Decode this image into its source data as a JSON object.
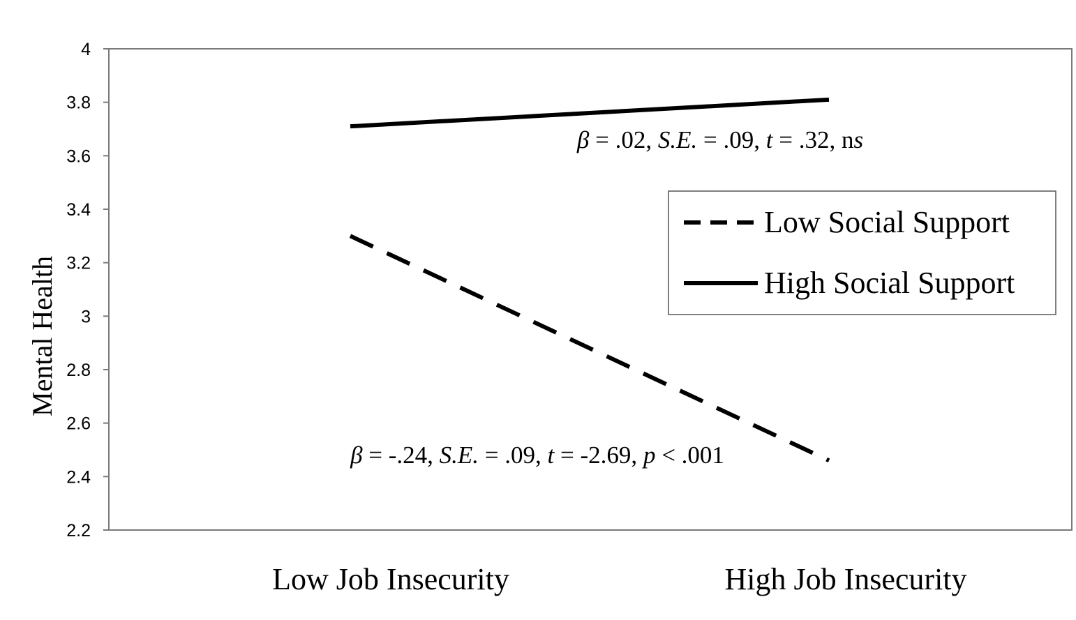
{
  "chart_data": {
    "type": "line",
    "categories": [
      "Low Job Insecurity",
      "High Job Insecurity"
    ],
    "series": [
      {
        "name": "Low Social Support",
        "values": [
          3.3,
          2.46
        ],
        "style": "dashed",
        "color": "#000000"
      },
      {
        "name": "High Social Support",
        "values": [
          3.71,
          3.81
        ],
        "style": "solid",
        "color": "#000000"
      }
    ],
    "ylabel": "Mental Health",
    "xlabel": "",
    "ylim": [
      2.2,
      4
    ],
    "yticks": [
      "2.2",
      "2.4",
      "2.6",
      "2.8",
      "3",
      "3.2",
      "3.4",
      "3.6",
      "3.8",
      "4"
    ],
    "grid": false,
    "legend_position": "right",
    "annotations": [
      {
        "parts": [
          {
            "text": "β",
            "italic": true
          },
          {
            "text": " = .02, ",
            "italic": false
          },
          {
            "text": "S.E.",
            "italic": true
          },
          {
            "text": " = .09,  ",
            "italic": false
          },
          {
            "text": "t",
            "italic": true
          },
          {
            "text": " = .32, n",
            "italic": false
          },
          {
            "text": "s",
            "italic": true
          }
        ]
      },
      {
        "parts": [
          {
            "text": "β",
            "italic": true
          },
          {
            "text": " = -.24, ",
            "italic": false
          },
          {
            "text": "S.E.",
            "italic": true
          },
          {
            "text": " = .09, ",
            "italic": false
          },
          {
            "text": "t",
            "italic": true
          },
          {
            "text": " = -2.69, ",
            "italic": false
          },
          {
            "text": "p",
            "italic": true
          },
          {
            "text": " < .001",
            "italic": false
          }
        ]
      }
    ]
  }
}
